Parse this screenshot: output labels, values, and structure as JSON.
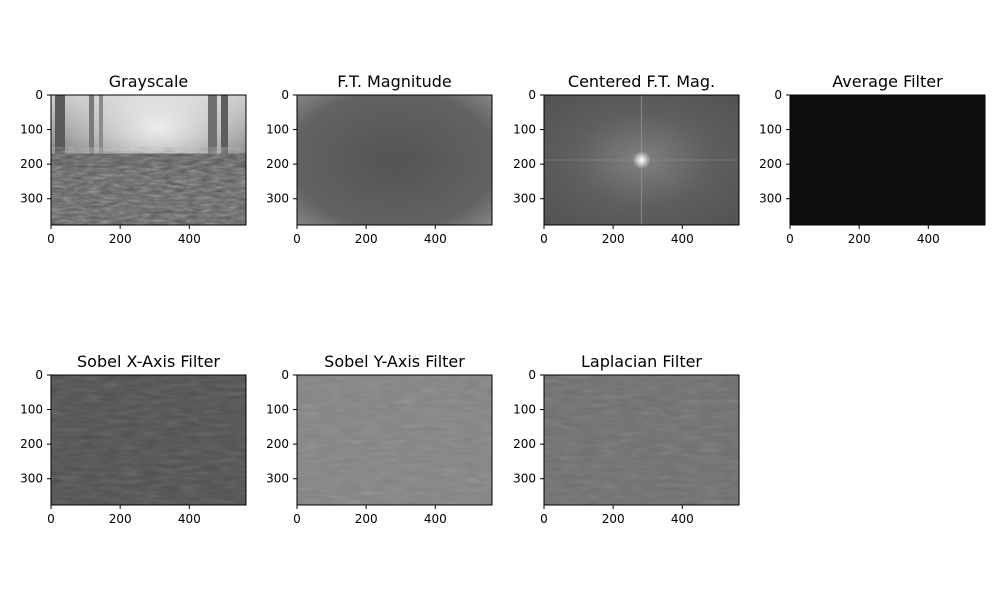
{
  "chart_data": [
    {
      "type": "heatmap",
      "title": "Grayscale",
      "colormap": "gray",
      "xticks": [
        0,
        200,
        400
      ],
      "yticks": [
        0,
        100,
        200,
        300
      ],
      "xlim": [
        0,
        564
      ],
      "ylim": [
        376,
        0
      ],
      "image": "grayscale"
    },
    {
      "type": "heatmap",
      "title": "F.T. Magnitude",
      "colormap": "gray",
      "xticks": [
        0,
        200,
        400
      ],
      "yticks": [
        0,
        100,
        200,
        300
      ],
      "xlim": [
        0,
        564
      ],
      "ylim": [
        376,
        0
      ],
      "image": "ft-magnitude"
    },
    {
      "type": "heatmap",
      "title": "Centered F.T. Mag.",
      "colormap": "gray",
      "xticks": [
        0,
        200,
        400
      ],
      "yticks": [
        0,
        100,
        200,
        300
      ],
      "xlim": [
        0,
        564
      ],
      "ylim": [
        376,
        0
      ],
      "image": "centered-ft"
    },
    {
      "type": "heatmap",
      "title": "Average Filter",
      "colormap": "gray",
      "xticks": [
        0,
        200,
        400
      ],
      "yticks": [
        0,
        100,
        200,
        300
      ],
      "xlim": [
        0,
        564
      ],
      "ylim": [
        376,
        0
      ],
      "image": "average"
    },
    {
      "type": "heatmap",
      "title": "Sobel X-Axis Filter",
      "colormap": "gray",
      "xticks": [
        0,
        200,
        400
      ],
      "yticks": [
        0,
        100,
        200,
        300
      ],
      "xlim": [
        0,
        564
      ],
      "ylim": [
        376,
        0
      ],
      "image": "sobel-x"
    },
    {
      "type": "heatmap",
      "title": "Sobel Y-Axis Filter",
      "colormap": "gray",
      "xticks": [
        0,
        200,
        400
      ],
      "yticks": [
        0,
        100,
        200,
        300
      ],
      "xlim": [
        0,
        564
      ],
      "ylim": [
        376,
        0
      ],
      "image": "sobel-y"
    },
    {
      "type": "heatmap",
      "title": "Laplacian Filter",
      "colormap": "gray",
      "xticks": [
        0,
        200,
        400
      ],
      "yticks": [
        0,
        100,
        200,
        300
      ],
      "xlim": [
        0,
        564
      ],
      "ylim": [
        376,
        0
      ],
      "image": "laplacian"
    }
  ]
}
